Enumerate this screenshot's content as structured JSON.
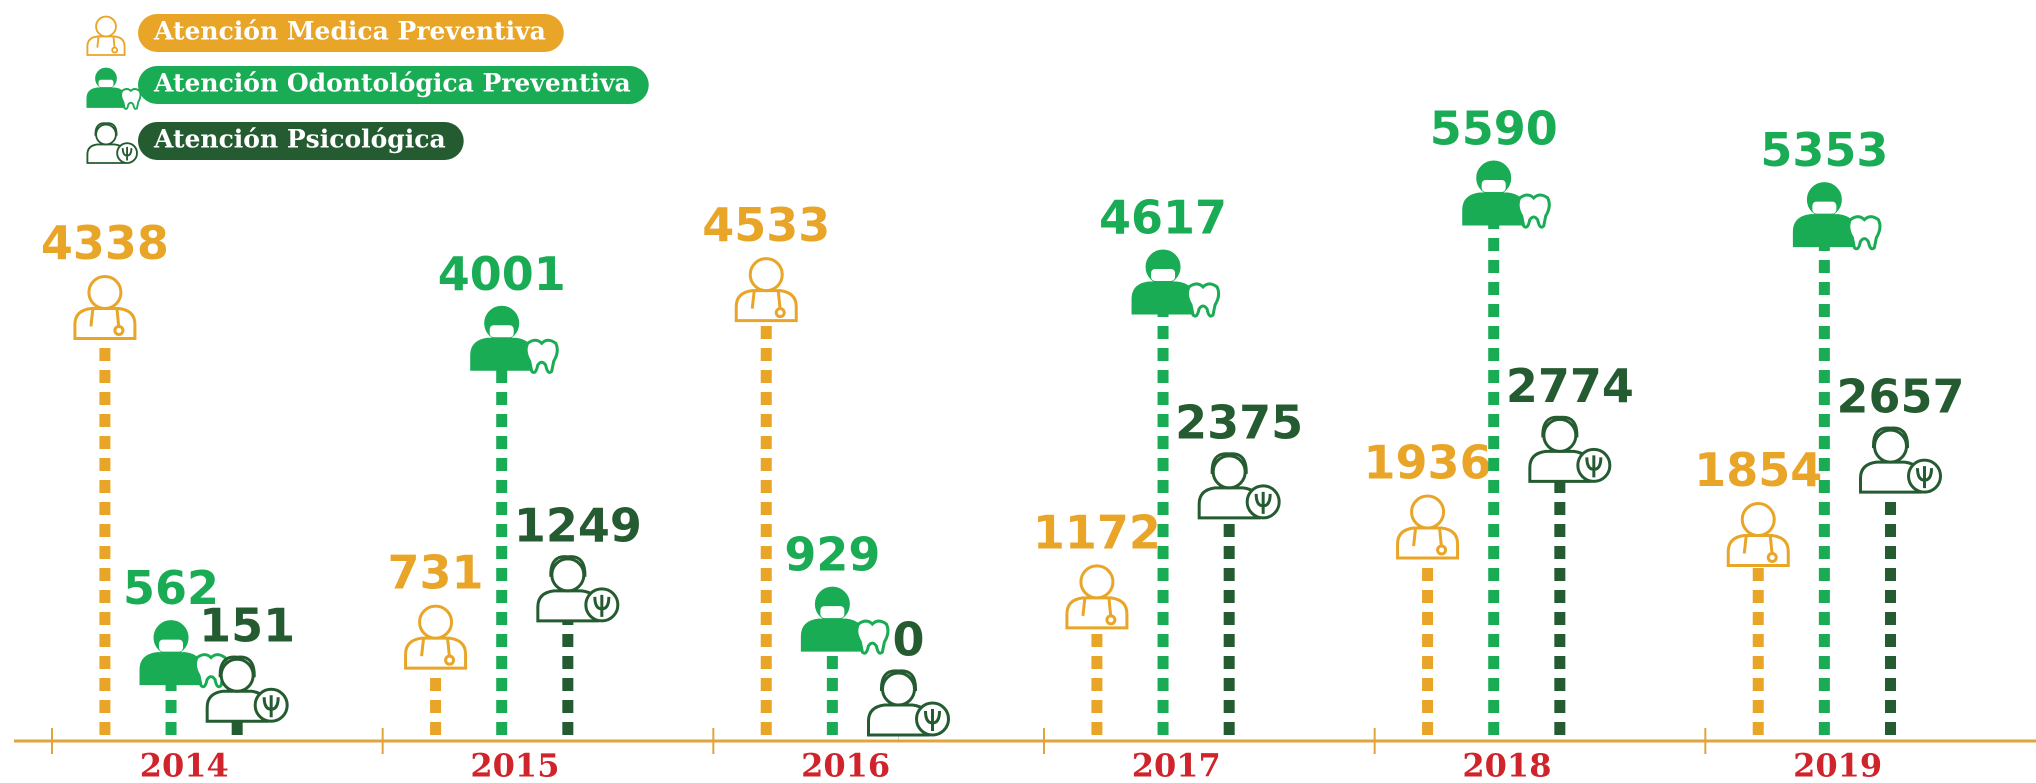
{
  "chart_data": {
    "type": "lollipop",
    "categories": [
      "2014",
      "2015",
      "2016",
      "2017",
      "2018",
      "2019"
    ],
    "series": [
      {
        "name": "Atención Medica Preventiva",
        "color": "#e9a527",
        "values": [
          4338,
          731,
          4533,
          1172,
          1936,
          1854
        ]
      },
      {
        "name": "Atención Odontológica Preventiva",
        "color": "#1aab55",
        "values": [
          562,
          4001,
          929,
          4617,
          5590,
          5353
        ]
      },
      {
        "name": "Atención Psicológica",
        "color": "#255b30",
        "values": [
          151,
          1249,
          0,
          2375,
          2774,
          2657
        ]
      }
    ]
  }
}
